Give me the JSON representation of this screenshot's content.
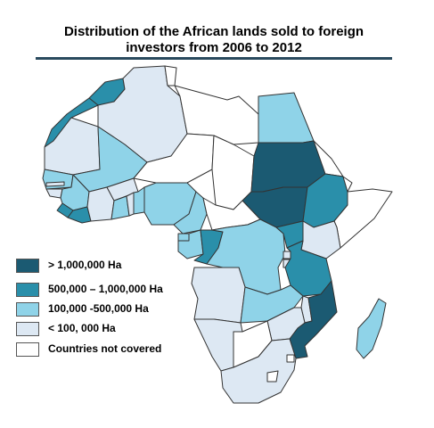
{
  "title_line1": "Distribution of the African lands sold to foreign",
  "title_line2": "investors from 2006 to 2012",
  "legend": [
    {
      "label": "> 1,000,000 Ha",
      "color": "#1b5a72"
    },
    {
      "label": "500,000 – 1,000,000 Ha",
      "color": "#2a8faa"
    },
    {
      "label": "100,000 -500,000 Ha",
      "color": "#8fd3e8"
    },
    {
      "label": "< 100, 000 Ha",
      "color": "#dde8f3"
    },
    {
      "label": "Countries not covered",
      "color": "#ffffff"
    }
  ],
  "colors": {
    "dark": "#1b5a72",
    "mid": "#2a8faa",
    "light": "#8fd3e8",
    "pale": "#dde8f3",
    "none": "#ffffff",
    "border": "#333333",
    "title_rule": "#2a4a5e"
  },
  "countries": [
    {
      "name": "Morocco",
      "class": "mid"
    },
    {
      "name": "Western Sahara",
      "class": "mid"
    },
    {
      "name": "Algeria",
      "class": "pale"
    },
    {
      "name": "Tunisia",
      "class": "none"
    },
    {
      "name": "Libya",
      "class": "none"
    },
    {
      "name": "Egypt",
      "class": "light"
    },
    {
      "name": "Mauritania",
      "class": "pale"
    },
    {
      "name": "Mali",
      "class": "light"
    },
    {
      "name": "Niger",
      "class": "none"
    },
    {
      "name": "Chad",
      "class": "none"
    },
    {
      "name": "Sudan",
      "class": "dark"
    },
    {
      "name": "South Sudan",
      "class": "dark"
    },
    {
      "name": "Eritrea",
      "class": "none"
    },
    {
      "name": "Ethiopia",
      "class": "mid"
    },
    {
      "name": "Djibouti",
      "class": "none"
    },
    {
      "name": "Somalia",
      "class": "none"
    },
    {
      "name": "Senegal",
      "class": "light"
    },
    {
      "name": "Gambia",
      "class": "pale"
    },
    {
      "name": "Guinea-Bissau",
      "class": "pale"
    },
    {
      "name": "Guinea",
      "class": "light"
    },
    {
      "name": "Sierra Leone",
      "class": "mid"
    },
    {
      "name": "Liberia",
      "class": "mid"
    },
    {
      "name": "Cote d'Ivoire",
      "class": "pale"
    },
    {
      "name": "Burkina Faso",
      "class": "pale"
    },
    {
      "name": "Ghana",
      "class": "light"
    },
    {
      "name": "Togo",
      "class": "pale"
    },
    {
      "name": "Benin",
      "class": "light"
    },
    {
      "name": "Nigeria",
      "class": "light"
    },
    {
      "name": "Cameroon",
      "class": "light"
    },
    {
      "name": "Central African Republic",
      "class": "none"
    },
    {
      "name": "Equatorial Guinea",
      "class": "light"
    },
    {
      "name": "Gabon",
      "class": "light"
    },
    {
      "name": "Congo",
      "class": "mid"
    },
    {
      "name": "DR Congo",
      "class": "light"
    },
    {
      "name": "Uganda",
      "class": "mid"
    },
    {
      "name": "Kenya",
      "class": "pale"
    },
    {
      "name": "Rwanda",
      "class": "pale"
    },
    {
      "name": "Burundi",
      "class": "pale"
    },
    {
      "name": "Tanzania",
      "class": "mid"
    },
    {
      "name": "Angola",
      "class": "pale"
    },
    {
      "name": "Zambia",
      "class": "light"
    },
    {
      "name": "Malawi",
      "class": "pale"
    },
    {
      "name": "Mozambique",
      "class": "dark"
    },
    {
      "name": "Zimbabwe",
      "class": "pale"
    },
    {
      "name": "Namibia",
      "class": "pale"
    },
    {
      "name": "Botswana",
      "class": "none"
    },
    {
      "name": "South Africa",
      "class": "pale"
    },
    {
      "name": "Lesotho",
      "class": "none"
    },
    {
      "name": "Swaziland",
      "class": "none"
    },
    {
      "name": "Madagascar",
      "class": "light"
    }
  ]
}
